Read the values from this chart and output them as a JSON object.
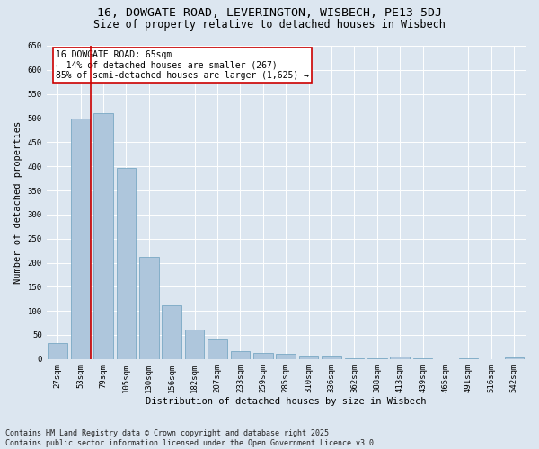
{
  "title_line1": "16, DOWGATE ROAD, LEVERINGTON, WISBECH, PE13 5DJ",
  "title_line2": "Size of property relative to detached houses in Wisbech",
  "xlabel": "Distribution of detached houses by size in Wisbech",
  "ylabel": "Number of detached properties",
  "categories": [
    "27sqm",
    "53sqm",
    "79sqm",
    "105sqm",
    "130sqm",
    "156sqm",
    "182sqm",
    "207sqm",
    "233sqm",
    "259sqm",
    "285sqm",
    "310sqm",
    "336sqm",
    "362sqm",
    "388sqm",
    "413sqm",
    "439sqm",
    "465sqm",
    "491sqm",
    "516sqm",
    "542sqm"
  ],
  "values": [
    33,
    500,
    510,
    397,
    213,
    112,
    62,
    40,
    17,
    13,
    10,
    7,
    8,
    2,
    2,
    5,
    1,
    0,
    2,
    0,
    3
  ],
  "bar_color": "#aec6dc",
  "bar_edge_color": "#6a9fbe",
  "vline_color": "#cc0000",
  "annotation_text": "16 DOWGATE ROAD: 65sqm\n← 14% of detached houses are smaller (267)\n85% of semi-detached houses are larger (1,625) →",
  "annotation_box_facecolor": "#ffffff",
  "annotation_box_edgecolor": "#cc0000",
  "ylim": [
    0,
    650
  ],
  "yticks": [
    0,
    50,
    100,
    150,
    200,
    250,
    300,
    350,
    400,
    450,
    500,
    550,
    600,
    650
  ],
  "background_color": "#dce6f0",
  "plot_background": "#dce6f0",
  "footer_text": "Contains HM Land Registry data © Crown copyright and database right 2025.\nContains public sector information licensed under the Open Government Licence v3.0.",
  "title_fontsize": 9.5,
  "subtitle_fontsize": 8.5,
  "axis_label_fontsize": 7.5,
  "tick_fontsize": 6.5,
  "annotation_fontsize": 7,
  "footer_fontsize": 6
}
